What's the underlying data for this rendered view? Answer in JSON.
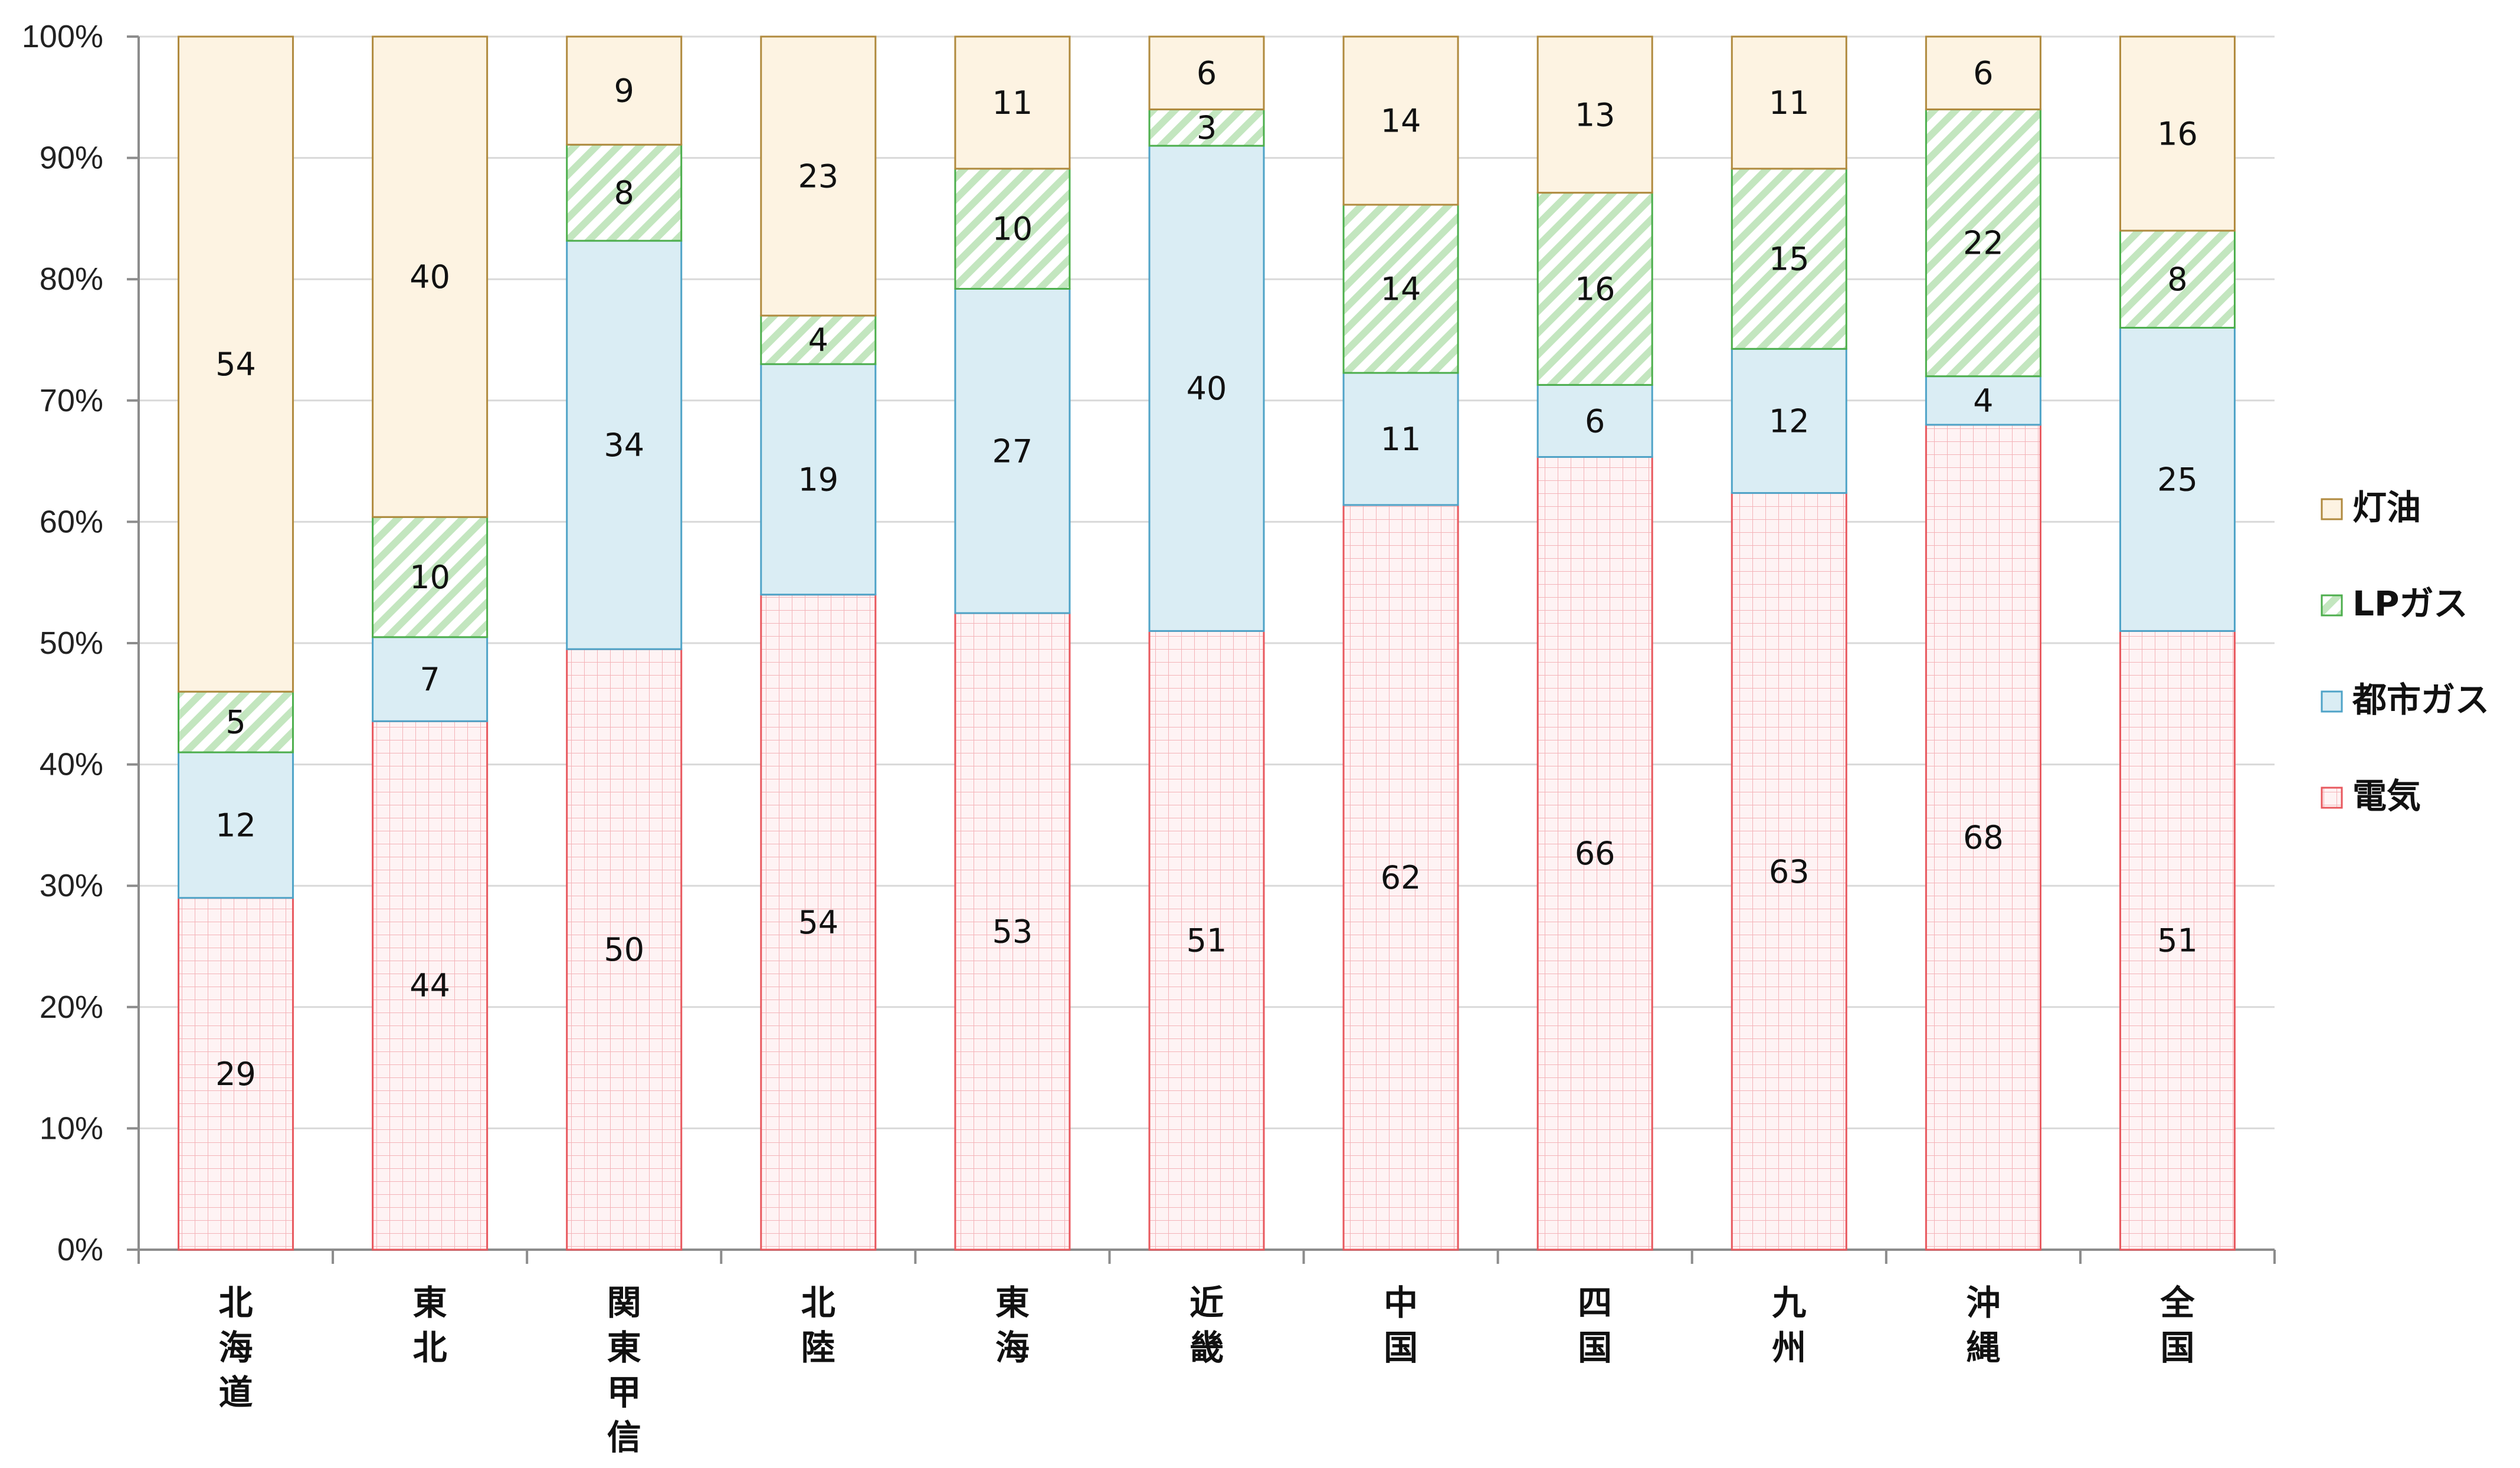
{
  "chart_data": {
    "type": "bar",
    "stacked": true,
    "categories": [
      [
        "北",
        "海",
        "道"
      ],
      [
        "東",
        "北"
      ],
      [
        "関",
        "東",
        "甲",
        "信"
      ],
      [
        "北",
        "陸"
      ],
      [
        "東",
        "海"
      ],
      [
        "近",
        "畿"
      ],
      [
        "中",
        "国"
      ],
      [
        "四",
        "国"
      ],
      [
        "九",
        "州"
      ],
      [
        "沖",
        "縄"
      ],
      [
        "全",
        "国"
      ]
    ],
    "series": [
      {
        "name": "電気",
        "color": "#e8585e",
        "fill": "#fdeef0",
        "pattern": "grid",
        "values": [
          29,
          44,
          50,
          54,
          53,
          51,
          62,
          66,
          63,
          68,
          51
        ]
      },
      {
        "name": "都市ガス",
        "color": "#4fa3c7",
        "fill": "#daedf4",
        "pattern": "solid",
        "values": [
          12,
          7,
          34,
          19,
          27,
          40,
          11,
          6,
          12,
          4,
          25
        ]
      },
      {
        "name": "LPガス",
        "color": "#4cae4c",
        "fill": "#c9e8c4",
        "pattern": "diagonal",
        "values": [
          5,
          10,
          8,
          4,
          10,
          3,
          14,
          16,
          15,
          22,
          8
        ]
      },
      {
        "name": "灯油",
        "color": "#b08a3e",
        "fill": "#fdf3e2",
        "pattern": "solid",
        "values": [
          54,
          40,
          9,
          23,
          11,
          6,
          14,
          13,
          11,
          6,
          16
        ]
      }
    ],
    "ylim": [
      0,
      100
    ],
    "yticks": [
      "0%",
      "10%",
      "20%",
      "30%",
      "40%",
      "50%",
      "60%",
      "70%",
      "80%",
      "90%",
      "100%"
    ],
    "grid": true,
    "legend_position": "right",
    "legend_order": [
      "灯油",
      "LPガス",
      "都市ガス",
      "電気"
    ]
  }
}
